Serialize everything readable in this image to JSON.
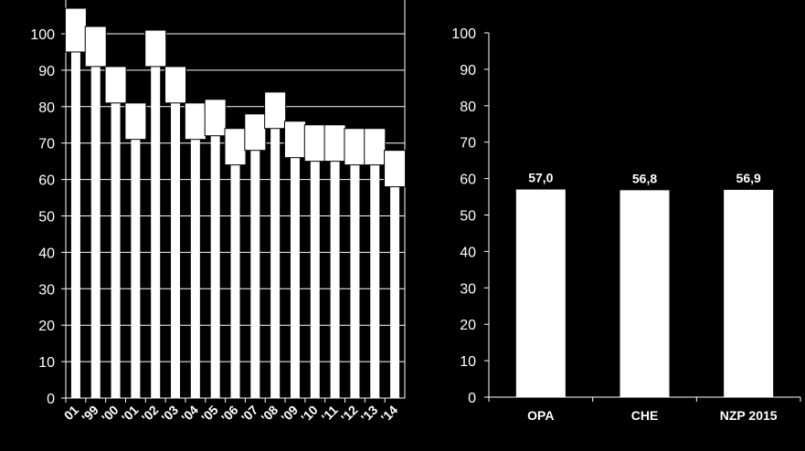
{
  "chart_data": [
    {
      "type": "bar",
      "categories": [
        "01",
        "'99",
        "'00",
        "'01",
        "'02",
        "'03",
        "'04",
        "'05",
        "'06",
        "'07",
        "'08",
        "'09",
        "'10",
        "'11",
        "'12",
        "'13",
        "'14"
      ],
      "series": [
        {
          "values": [
            95,
            91,
            81,
            71,
            91,
            81,
            71,
            72,
            64,
            68,
            74,
            66,
            65,
            65,
            64,
            64,
            58
          ]
        },
        {
          "values": [
            12,
            11,
            10,
            10,
            10,
            10,
            10,
            10,
            10,
            10,
            10,
            10,
            10,
            10,
            10,
            10,
            10
          ]
        }
      ],
      "ylim": [
        0,
        110
      ],
      "yticks": [
        0,
        10,
        20,
        30,
        40,
        50,
        60,
        70,
        80,
        90,
        100
      ],
      "grid": true,
      "stacked": true,
      "colors": {
        "bar": "#ffffff",
        "background": "#000000"
      }
    },
    {
      "type": "bar",
      "categories": [
        "OPA",
        "CHE",
        "NZP 2015"
      ],
      "values": [
        57.0,
        56.8,
        56.9
      ],
      "data_labels": [
        "57,0",
        "56,8",
        "56,9"
      ],
      "ylim": [
        0,
        100
      ],
      "yticks": [
        0,
        10,
        20,
        30,
        40,
        50,
        60,
        70,
        80,
        90,
        100
      ],
      "grid": false,
      "colors": {
        "bar": "#ffffff",
        "background": "#000000"
      }
    }
  ]
}
